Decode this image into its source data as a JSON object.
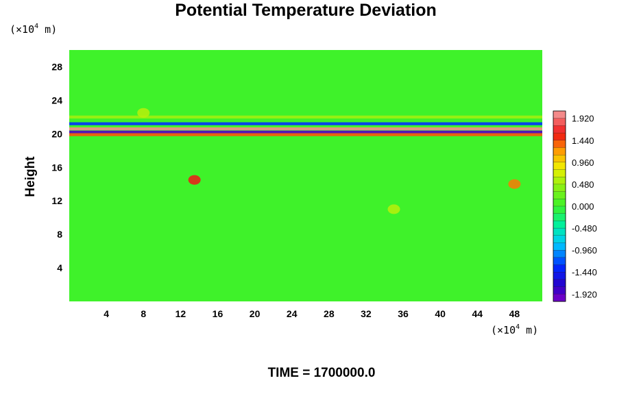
{
  "chart_data": {
    "type": "heatmap",
    "title": "Potential Temperature Deviation",
    "ylabel": "Height",
    "xlabel": "",
    "y_unit": {
      "prefix": "(×10",
      "sup": "4",
      "suffix": " m)"
    },
    "x_unit": {
      "prefix": "(×10",
      "sup": "4",
      "suffix": " m)"
    },
    "xlim": [
      0,
      51
    ],
    "ylim": [
      0,
      30
    ],
    "x_ticks": [
      4,
      8,
      12,
      16,
      20,
      24,
      28,
      32,
      36,
      40,
      44,
      48
    ],
    "y_ticks": [
      4,
      8,
      12,
      16,
      20,
      24,
      28
    ],
    "colorbar": {
      "min": -2.08,
      "max": 2.08,
      "step": 0.16,
      "labels": [
        "1.920",
        "1.440",
        "0.960",
        "0.480",
        "0.000",
        "-0.480",
        "-0.960",
        "-1.440",
        "-1.920"
      ],
      "label_values": [
        1.92,
        1.44,
        0.96,
        0.48,
        0.0,
        -0.48,
        -0.96,
        -1.44,
        -1.92
      ]
    },
    "field_description": {
      "background_value": 0.0,
      "bands": [
        {
          "y_center": 20.6,
          "value": 2.0
        },
        {
          "y_center": 20.2,
          "value": -1.9
        },
        {
          "y_center": 19.9,
          "value": 1.4
        },
        {
          "y_center": 21.2,
          "value": -1.3
        },
        {
          "y_center": 22.0,
          "value": 0.5
        }
      ],
      "blobs": [
        {
          "x": 13.5,
          "y": 14.5,
          "value": 1.6
        },
        {
          "x": 48.0,
          "y": 14.0,
          "value": 1.3
        },
        {
          "x": 8.0,
          "y": 22.5,
          "value": 0.6
        },
        {
          "x": 35.0,
          "y": 11.0,
          "value": 0.6
        }
      ]
    }
  },
  "footer": {
    "time_text": "TIME = 1700000.0"
  }
}
